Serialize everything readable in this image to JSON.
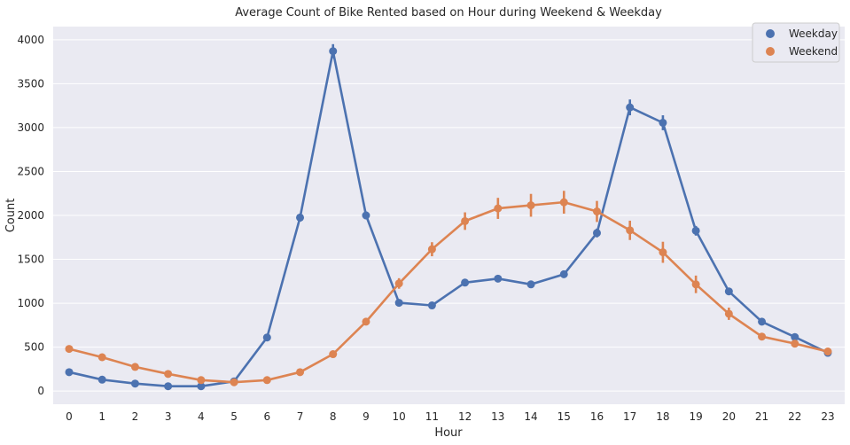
{
  "chart_data": {
    "type": "line",
    "title": "Average Count of Bike Rented based on Hour during Weekend & Weekday",
    "xlabel": "Hour",
    "ylabel": "Count",
    "categories": [
      "0",
      "1",
      "2",
      "3",
      "4",
      "5",
      "6",
      "7",
      "8",
      "9",
      "10",
      "11",
      "12",
      "13",
      "14",
      "15",
      "16",
      "17",
      "18",
      "19",
      "20",
      "21",
      "22",
      "23"
    ],
    "ylim": [
      -150,
      4150
    ],
    "yticks": [
      0,
      500,
      1000,
      1500,
      2000,
      2500,
      3000,
      3500,
      4000
    ],
    "grid": true,
    "legend_position": "top-right",
    "series": [
      {
        "name": "Weekday",
        "color": "#4c72b0",
        "values": [
          215,
          130,
          85,
          55,
          55,
          110,
          610,
          1975,
          3870,
          2000,
          1005,
          975,
          1235,
          1280,
          1215,
          1330,
          1800,
          3230,
          3055,
          1825,
          1135,
          790,
          615,
          435
        ],
        "err": [
          20,
          12,
          10,
          8,
          8,
          10,
          30,
          45,
          80,
          45,
          35,
          30,
          30,
          30,
          30,
          35,
          50,
          90,
          85,
          55,
          40,
          30,
          25,
          20
        ]
      },
      {
        "name": "Weekend",
        "color": "#dd8452",
        "values": [
          480,
          385,
          275,
          195,
          125,
          100,
          125,
          215,
          420,
          790,
          1225,
          1615,
          1935,
          2080,
          2115,
          2150,
          2045,
          1830,
          1580,
          1215,
          880,
          620,
          540,
          450
        ],
        "err": [
          20,
          18,
          15,
          12,
          10,
          8,
          10,
          15,
          25,
          40,
          60,
          80,
          100,
          120,
          130,
          130,
          120,
          110,
          120,
          100,
          70,
          40,
          35,
          30
        ]
      }
    ]
  }
}
